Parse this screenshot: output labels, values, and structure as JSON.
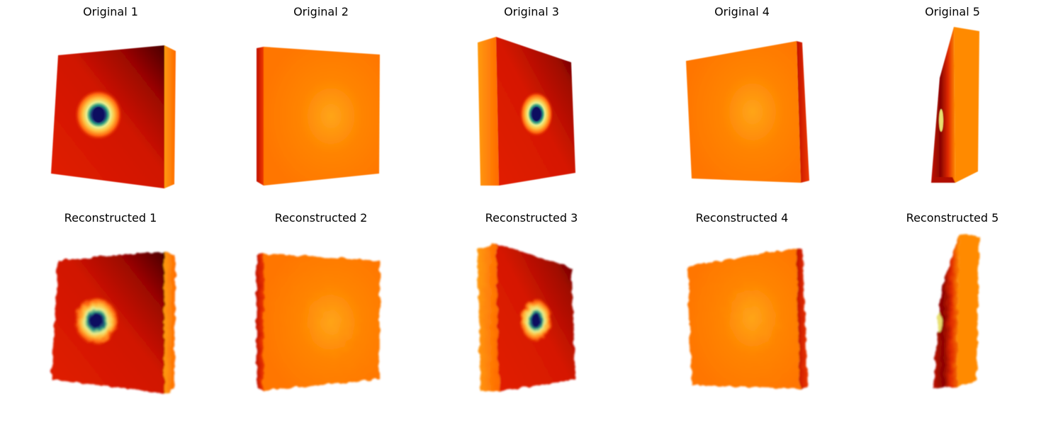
{
  "titles": {
    "original": [
      "Original 1",
      "Original 2",
      "Original 3",
      "Original 4",
      "Original 5"
    ],
    "reconstructed": [
      "Reconstructed 1",
      "Reconstructed 2",
      "Reconstructed 3",
      "Reconstructed 4",
      "Reconstructed 5"
    ]
  },
  "colors": {
    "background": "#ffffff",
    "cube_red": "#d91a00",
    "cube_dark": "#5a0000",
    "cube_orange": "#ff7b00",
    "cube_amber": "#ffb000",
    "hole_navy": "#1a2266",
    "hole_ring": "#e6f08c"
  }
}
